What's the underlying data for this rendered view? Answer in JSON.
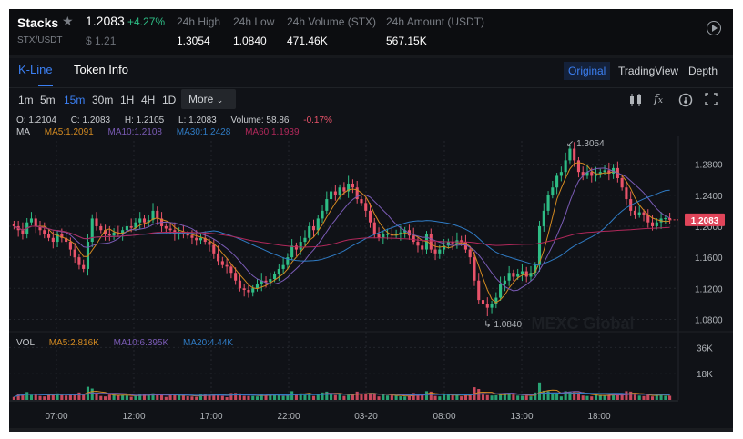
{
  "header": {
    "name": "Stacks",
    "pair": "STX/USDT",
    "last_price": "1.2083",
    "change_pct": "+4.27%",
    "usd_price": "$ 1.21",
    "stats": [
      {
        "label": "24h High",
        "value": "1.3054"
      },
      {
        "label": "24h Low",
        "value": "1.0840"
      },
      {
        "label": "24h Volume (STX)",
        "value": "471.46K"
      },
      {
        "label": "24h Amount (USDT)",
        "value": "567.15K"
      }
    ],
    "icons": {
      "favorite": "star-icon",
      "play": "play-circle-icon"
    }
  },
  "tabs": {
    "left": [
      {
        "label": "K-Line",
        "active": true
      },
      {
        "label": "Token Info",
        "active": false
      }
    ],
    "right": [
      {
        "label": "Original",
        "active": true
      },
      {
        "label": "TradingView",
        "active": false
      },
      {
        "label": "Depth",
        "active": false
      }
    ]
  },
  "intervals": {
    "items": [
      "1m",
      "5m",
      "15m",
      "30m",
      "1H",
      "4H",
      "1D"
    ],
    "active": "15m",
    "more_label": "More"
  },
  "toolbar_icons": [
    "candlestick-type-icon",
    "indicator-fx-icon",
    "settings-gauge-icon",
    "fullscreen-icon"
  ],
  "ohlc": {
    "open": "O: 1.2104",
    "close": "C: 1.2083",
    "high": "H: 1.2105",
    "low": "L: 1.2083",
    "volume": "Volume: 58.86",
    "change": "-0.17%"
  },
  "ma_legend": {
    "label": "MA",
    "ma5": "MA5:1.2091",
    "ma10": "MA10:1.2108",
    "ma30": "MA30:1.2428",
    "ma60": "MA60:1.1939"
  },
  "vol_legend": {
    "label": "VOL",
    "ma5": "MA5:2.816K",
    "ma10": "MA10:6.395K",
    "ma20": "MA20:4.44K"
  },
  "annotations": {
    "high": "1.3054",
    "low": "1.0840",
    "current_price_tag": "1.2083"
  },
  "watermark": "MEXC Global",
  "colors": {
    "up": "#2ebd85",
    "down": "#e9536a",
    "ma5": "#d38a21",
    "ma10": "#7a5bb5",
    "ma30": "#2f7bc4",
    "ma60": "#b0285a",
    "accent": "#3b7ff2",
    "price_tag": "#e0455a"
  },
  "chart_data": {
    "type": "candlestick",
    "title": "STX/USDT 15m",
    "interval": "15m",
    "x_ticks": [
      "07:00",
      "12:00",
      "17:00",
      "22:00",
      "03-20",
      "08:00",
      "13:00",
      "18:00"
    ],
    "y_ticks": [
      1.08,
      1.12,
      1.16,
      1.2,
      1.24,
      1.28
    ],
    "ylim": [
      1.07,
      1.31
    ],
    "vol_ticks": [
      "18K",
      "36K"
    ],
    "vol_lim": [
      0,
      40000
    ],
    "high": 1.3054,
    "low": 1.084,
    "last": 1.2083,
    "close_series": [
      1.2,
      1.195,
      1.19,
      1.205,
      1.21,
      1.2,
      1.195,
      1.19,
      1.185,
      1.18,
      1.19,
      1.185,
      1.18,
      1.17,
      1.16,
      1.15,
      1.145,
      1.18,
      1.21,
      1.2,
      1.195,
      1.19,
      1.188,
      1.192,
      1.19,
      1.195,
      1.2,
      1.198,
      1.205,
      1.21,
      1.205,
      1.208,
      1.22,
      1.21,
      1.2,
      1.197,
      1.195,
      1.19,
      1.193,
      1.19,
      1.188,
      1.185,
      1.182,
      1.185,
      1.18,
      1.176,
      1.165,
      1.155,
      1.15,
      1.148,
      1.14,
      1.13,
      1.12,
      1.118,
      1.115,
      1.12,
      1.125,
      1.13,
      1.128,
      1.132,
      1.138,
      1.145,
      1.15,
      1.16,
      1.175,
      1.17,
      1.18,
      1.185,
      1.2,
      1.195,
      1.21,
      1.22,
      1.235,
      1.245,
      1.24,
      1.25,
      1.245,
      1.255,
      1.25,
      1.235,
      1.23,
      1.22,
      1.205,
      1.19,
      1.185,
      1.19,
      1.19,
      1.188,
      1.19,
      1.192,
      1.195,
      1.188,
      1.18,
      1.175,
      1.17,
      1.19,
      1.17,
      1.165,
      1.17,
      1.175,
      1.18,
      1.178,
      1.182,
      1.18,
      1.17,
      1.16,
      1.13,
      1.105,
      1.1,
      1.095,
      1.1,
      1.108,
      1.125,
      1.13,
      1.14,
      1.135,
      1.138,
      1.142,
      1.135,
      1.14,
      1.15,
      1.2,
      1.22,
      1.24,
      1.25,
      1.265,
      1.27,
      1.285,
      1.3,
      1.285,
      1.27,
      1.265,
      1.27,
      1.265,
      1.268,
      1.27,
      1.272,
      1.268,
      1.275,
      1.262,
      1.25,
      1.235,
      1.22,
      1.215,
      1.218,
      1.215,
      1.205,
      1.2,
      1.205,
      1.21,
      1.2105,
      1.2083
    ]
  }
}
